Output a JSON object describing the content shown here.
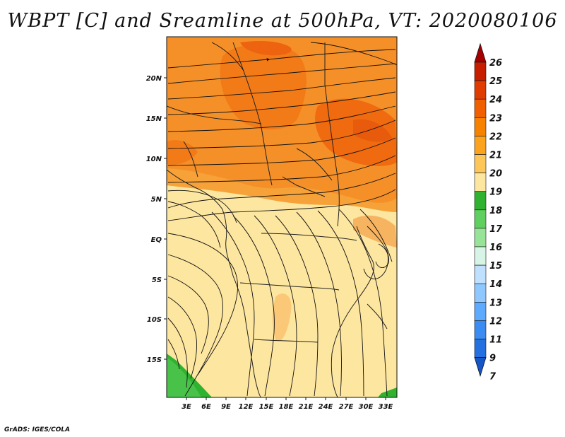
{
  "title": "WBPT [C] and Sreamline at 500hPa, VT: 2020080106",
  "credit": "GrADS: IGES/COLA",
  "map": {
    "lat_ticks": [
      "20N",
      "15N",
      "10N",
      "5N",
      "EQ",
      "5S",
      "10S",
      "15S"
    ],
    "lon_ticks": [
      "3E",
      "6E",
      "9E",
      "12E",
      "15E",
      "18E",
      "21E",
      "24E",
      "27E",
      "30E",
      "33E"
    ]
  },
  "colorbar": {
    "labels": [
      "26",
      "25",
      "24",
      "23",
      "22",
      "21",
      "20",
      "19",
      "18",
      "17",
      "16",
      "15",
      "14",
      "13",
      "12",
      "11",
      "9",
      "7"
    ],
    "colors": [
      "#a50000",
      "#c81e00",
      "#e03c00",
      "#f06000",
      "#f78200",
      "#fba21e",
      "#fdc658",
      "#fde6a0",
      "#2fb22f",
      "#5fcf5f",
      "#97e397",
      "#d6f5e6",
      "#bfe0ff",
      "#8ec8ff",
      "#5eaaff",
      "#3b8cf2",
      "#2470e0",
      "#1455c8"
    ]
  }
}
